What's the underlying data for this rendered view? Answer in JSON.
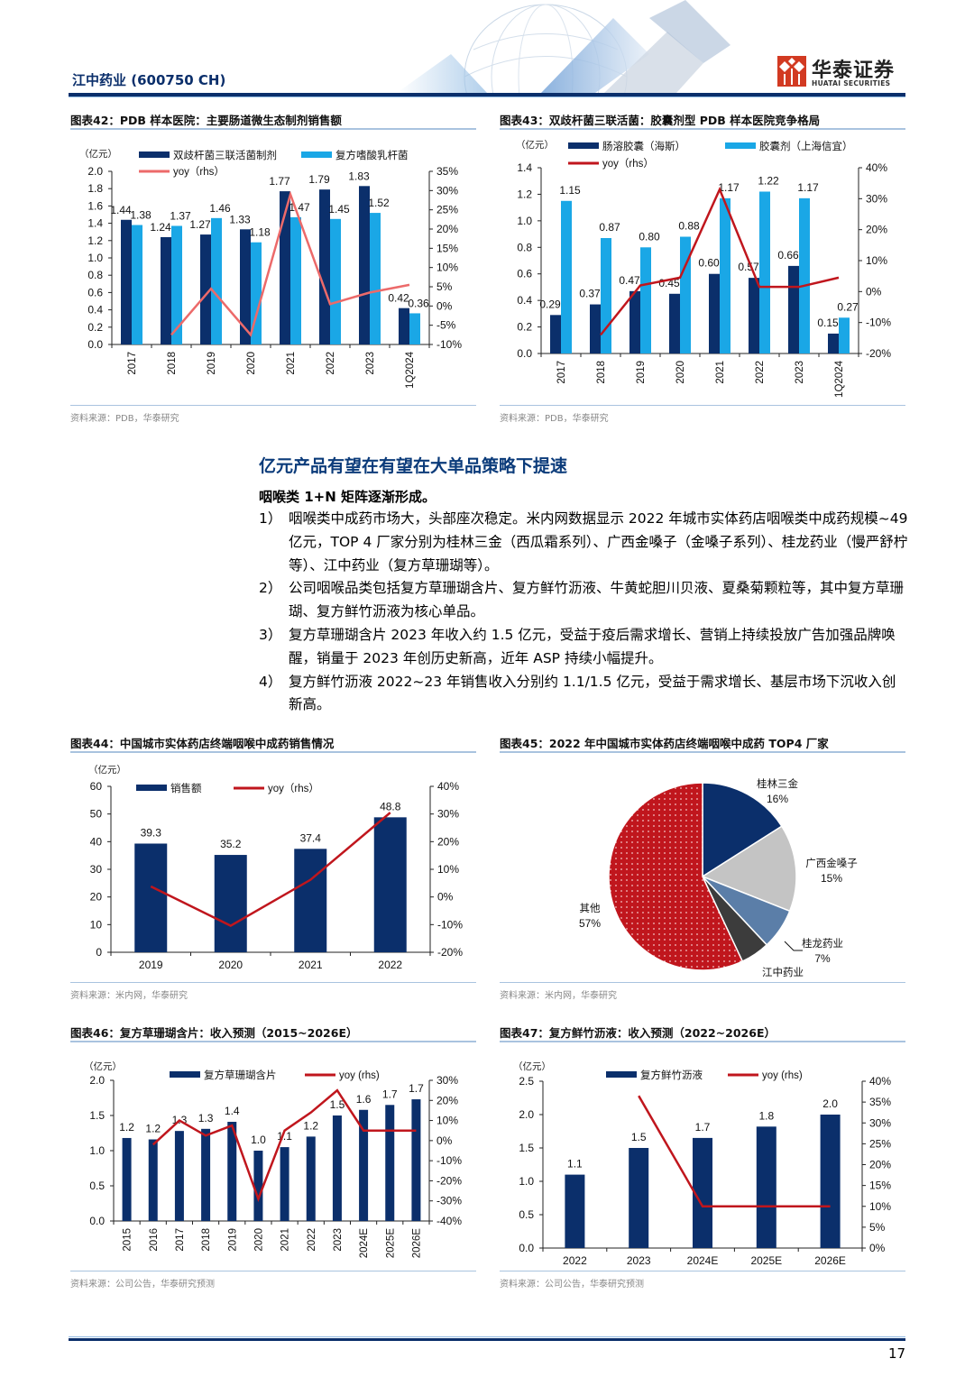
{
  "header": {
    "company_title": "江中药业 (600750 CH)",
    "logo_cn": "华泰证券",
    "logo_en": "HUATAI SECURITIES"
  },
  "figures": {
    "fig42": {
      "title": "图表42：PDB 样本医院：主要肠道微生态制剂销售额",
      "source": "资料来源：PDB，华泰研究",
      "unit": "（亿元）",
      "legend": [
        "双歧杆菌三联活菌制剂",
        "复方嗜酸乳杆菌",
        "yoy（rhs）"
      ]
    },
    "fig43": {
      "title": "图表43：双歧杆菌三联活菌：胶囊剂型 PDB 样本医院竞争格局",
      "source": "资料来源：PDB，华泰研究",
      "unit": "（亿元）",
      "legend": [
        "肠溶胶囊（海斯）",
        "胶囊剂（上海信宜）",
        "yoy（rhs）"
      ]
    },
    "fig44": {
      "title": "图表44：中国城市实体药店终端咽喉中成药销售情况",
      "source": "资料来源：米内网，华泰研究",
      "unit": "（亿元）",
      "legend": [
        "销售额",
        "yoy（rhs）"
      ]
    },
    "fig45": {
      "title": "图表45：2022 年中国城市实体药店终端咽喉中成药 TOP4 厂家",
      "source": "资料来源：米内网，华泰研究"
    },
    "fig46": {
      "title": "图表46：复方草珊瑚含片：收入预测（2015~2026E）",
      "source": "资料来源：公司公告，华泰研究预测",
      "unit": "（亿元）",
      "legend": [
        "复方草珊瑚含片",
        "yoy (rhs)"
      ]
    },
    "fig47": {
      "title": "图表47：复方鲜竹沥液：收入预测（2022~2026E）",
      "source": "资料来源：公司公告，华泰研究预测",
      "unit": "（亿元）",
      "legend": [
        "复方鲜竹沥液",
        "yoy (rhs)"
      ]
    }
  },
  "body": {
    "section_title": "亿元产品有望在有望在大单品策略下提速",
    "lead": "咽喉类 1+N 矩阵逐渐形成。",
    "items": [
      {
        "num": "1）",
        "text": "咽喉类中成药市场大，头部座次稳定。米内网数据显示 2022 年城市实体药店咽喉类中成药规模~49 亿元，TOP 4 厂家分别为桂林三金（西瓜霜系列）、广西金嗓子（金嗓子系列）、桂龙药业（慢严舒柠等）、江中药业（复方草珊瑚等）。"
      },
      {
        "num": "2）",
        "text": "公司咽喉品类包括复方草珊瑚含片、复方鲜竹沥液、牛黄蛇胆川贝液、夏桑菊颗粒等，其中复方草珊瑚、复方鲜竹沥液为核心单品。"
      },
      {
        "num": "3）",
        "text": "复方草珊瑚含片 2023 年收入约 1.5 亿元，受益于疫后需求增长、营销上持续投放广告加强品牌唤醒，销量于 2023 年创历史新高，近年 ASP 持续小幅提升。"
      },
      {
        "num": "4）",
        "text": "复方鲜竹沥液 2022~23 年销售收入分别约 1.1/1.5 亿元，受益于需求增长、基层市场下沉收入创新高。"
      }
    ]
  },
  "footer": {
    "page_number": "17"
  },
  "colors": {
    "navy": "#0b2f6b",
    "cyan": "#1aa7e6",
    "red": "#c0161d",
    "salmon": "#ec6a6a",
    "gray": "#c4c4c4",
    "slate": "#5b7ea8",
    "dark": "#3c3c3c"
  },
  "chart_data": [
    {
      "id": "fig42",
      "type": "bar",
      "title": "PDB 样本医院：主要肠道微生态制剂销售额",
      "categories": [
        "2017",
        "2018",
        "2019",
        "2020",
        "2021",
        "2022",
        "2023",
        "1Q2024"
      ],
      "series": [
        {
          "name": "双歧杆菌三联活菌制剂",
          "values": [
            1.44,
            1.24,
            1.27,
            1.33,
            1.77,
            1.79,
            1.83,
            0.42
          ]
        },
        {
          "name": "复方嗜酸乳杆菌",
          "values": [
            1.38,
            1.37,
            1.46,
            1.18,
            1.47,
            1.45,
            1.52,
            0.36
          ]
        },
        {
          "name": "yoy（rhs）",
          "type": "line",
          "axis": "right",
          "values": [
            null,
            -7.5,
            4.5,
            -7.5,
            29,
            0.5,
            3.5,
            5.5
          ]
        }
      ],
      "ylabel": "亿元",
      "ylim": [
        0,
        2.0
      ],
      "yticks": [
        0.0,
        0.2,
        0.4,
        0.6,
        0.8,
        1.0,
        1.2,
        1.4,
        1.6,
        1.8,
        2.0
      ],
      "y2lim": [
        -10,
        35
      ],
      "y2ticks": [
        "-10%",
        "-5%",
        "0%",
        "5%",
        "10%",
        "15%",
        "20%",
        "25%",
        "30%",
        "35%"
      ]
    },
    {
      "id": "fig43",
      "type": "bar",
      "title": "双歧杆菌三联活菌：胶囊剂型 PDB 样本医院竞争格局",
      "categories": [
        "2017",
        "2018",
        "2019",
        "2020",
        "2021",
        "2022",
        "2023",
        "1Q2024"
      ],
      "series": [
        {
          "name": "肠溶胶囊（海斯）",
          "values": [
            0.29,
            0.37,
            0.47,
            0.45,
            0.6,
            0.57,
            0.66,
            0.15
          ]
        },
        {
          "name": "胶囊剂（上海信宜）",
          "values": [
            1.15,
            0.87,
            0.8,
            0.88,
            1.17,
            1.22,
            1.17,
            0.27
          ]
        },
        {
          "name": "yoy（rhs）",
          "type": "line",
          "axis": "right",
          "values": [
            null,
            -14,
            2,
            4.5,
            33,
            1.5,
            1.5,
            4.5
          ]
        }
      ],
      "ylabel": "亿元",
      "ylim": [
        0,
        1.4
      ],
      "yticks": [
        0.0,
        0.2,
        0.4,
        0.6,
        0.8,
        1.0,
        1.2,
        1.4
      ],
      "y2lim": [
        -20,
        40
      ],
      "y2ticks": [
        "-20%",
        "-10%",
        "0%",
        "10%",
        "20%",
        "30%",
        "40%"
      ]
    },
    {
      "id": "fig44",
      "type": "bar",
      "title": "中国城市实体药店终端咽喉中成药销售情况",
      "categories": [
        "2019",
        "2020",
        "2021",
        "2022"
      ],
      "series": [
        {
          "name": "销售额",
          "values": [
            39.3,
            35.2,
            37.4,
            48.8
          ]
        },
        {
          "name": "yoy（rhs）",
          "type": "line",
          "axis": "right",
          "values": [
            3.8,
            -10.4,
            6.2,
            30.5
          ]
        }
      ],
      "ylabel": "亿元",
      "ylim": [
        0,
        60
      ],
      "yticks": [
        0,
        10,
        20,
        30,
        40,
        50,
        60
      ],
      "y2lim": [
        -20,
        40
      ],
      "y2ticks": [
        "-20%",
        "-10%",
        "0%",
        "10%",
        "20%",
        "30%",
        "40%"
      ]
    },
    {
      "id": "fig45",
      "type": "pie",
      "title": "2022 年中国城市实体药店终端咽喉中成药 TOP4 厂家",
      "labels": [
        "桂林三金",
        "广西金嗓子",
        "桂龙药业",
        "江中药业",
        "其他"
      ],
      "values": [
        16,
        15,
        7,
        5,
        57
      ],
      "display": [
        "16%",
        "15%",
        "7%",
        "5%",
        "57%"
      ]
    },
    {
      "id": "fig46",
      "type": "bar",
      "title": "复方草珊瑚含片：收入预测（2015~2026E）",
      "categories": [
        "2015",
        "2016",
        "2017",
        "2018",
        "2019",
        "2020",
        "2021",
        "2022",
        "2023",
        "2024E",
        "2025E",
        "2026E"
      ],
      "series": [
        {
          "name": "复方草珊瑚含片",
          "values": [
            1.18,
            1.16,
            1.28,
            1.31,
            1.41,
            1.0,
            1.05,
            1.2,
            1.5,
            1.58,
            1.65,
            1.73
          ],
          "labels": [
            "1.2",
            "1.2",
            "1.3",
            "1.3",
            "1.4",
            "1.0",
            "1.1",
            "1.2",
            "1.5",
            "1.6",
            "1.7",
            "1.7"
          ]
        },
        {
          "name": "yoy (rhs)",
          "type": "line",
          "axis": "right",
          "values": [
            null,
            -2,
            10,
            2.5,
            7.5,
            -29,
            5,
            14,
            25,
            5,
            5,
            5
          ]
        }
      ],
      "ylabel": "亿元",
      "ylim": [
        0,
        2.0
      ],
      "yticks": [
        0.0,
        0.5,
        1.0,
        1.5,
        2.0
      ],
      "y2lim": [
        -40,
        30
      ],
      "y2ticks": [
        "-40%",
        "-30%",
        "-20%",
        "-10%",
        "0%",
        "10%",
        "20%",
        "30%"
      ]
    },
    {
      "id": "fig47",
      "type": "bar",
      "title": "复方鲜竹沥液：收入预测（2022~2026E）",
      "categories": [
        "2022",
        "2023",
        "2024E",
        "2025E",
        "2026E"
      ],
      "series": [
        {
          "name": "复方鲜竹沥液",
          "values": [
            1.1,
            1.5,
            1.65,
            1.82,
            2.0
          ],
          "labels": [
            "1.1",
            "1.5",
            "1.7",
            "1.8",
            "2.0"
          ]
        },
        {
          "name": "yoy (rhs)",
          "type": "line",
          "axis": "right",
          "values": [
            null,
            36.5,
            10,
            10,
            10
          ]
        }
      ],
      "ylabel": "亿元",
      "ylim": [
        0,
        2.5
      ],
      "yticks": [
        0.0,
        0.5,
        1.0,
        1.5,
        2.0,
        2.5
      ],
      "y2lim": [
        0,
        40
      ],
      "y2ticks": [
        "0%",
        "5%",
        "10%",
        "15%",
        "20%",
        "25%",
        "30%",
        "35%",
        "40%"
      ]
    }
  ]
}
